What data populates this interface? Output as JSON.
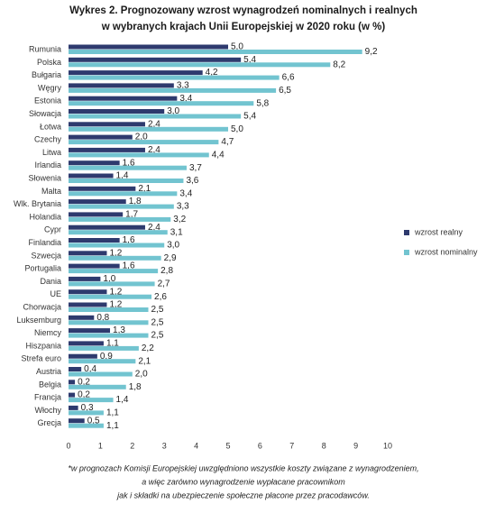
{
  "chart_data": {
    "type": "hbar",
    "title": [
      "Wykres 2. Prognozowany wzrost wynagrodzeń nominalnych i realnych",
      "w wybranych krajach Unii Europejskiej w 2020 roku (w %)"
    ],
    "categories": [
      "Rumunia",
      "Polska",
      "Bułgaria",
      "Węgry",
      "Estonia",
      "Słowacja",
      "Łotwa",
      "Czechy",
      "Litwa",
      "Irlandia",
      "Słowenia",
      "Malta",
      "Wlk. Brytania",
      "Holandia",
      "Cypr",
      "Finlandia",
      "Szwecja",
      "Portugalia",
      "Dania",
      "UE",
      "Chorwacja",
      "Luksemburg",
      "Niemcy",
      "Hiszpania",
      "Strefa euro",
      "Austria",
      "Belgia",
      "Francja",
      "Włochy",
      "Grecja"
    ],
    "series": [
      {
        "name": "wzrost realny",
        "color": "#2e3a6e",
        "values": [
          5.0,
          5.4,
          4.2,
          3.3,
          3.4,
          3.0,
          2.4,
          2.0,
          2.4,
          1.6,
          1.4,
          2.1,
          1.8,
          1.7,
          2.4,
          1.6,
          1.2,
          1.6,
          1.0,
          1.2,
          1.2,
          0.8,
          1.3,
          1.1,
          0.9,
          0.4,
          0.2,
          0.2,
          0.3,
          0.5
        ],
        "value_labels": [
          "5,0",
          "5,4",
          "4,2",
          "3,3",
          "3,4",
          "3,0",
          "2,4",
          "2,0",
          "2,4",
          "1,6",
          "1,4",
          "2,1",
          "1,8",
          "1,7",
          "2,4",
          "1,6",
          "1,2",
          "1,6",
          "1,0",
          "1,2",
          "1,2",
          "0,8",
          "1,3",
          "1,1",
          "0,9",
          "0,4",
          "0,2",
          "0,2",
          "0,3",
          "0,5"
        ]
      },
      {
        "name": "wzrost nominalny",
        "color": "#72c4d0",
        "values": [
          9.2,
          8.2,
          6.6,
          6.5,
          5.8,
          5.4,
          5.0,
          4.7,
          4.4,
          3.7,
          3.6,
          3.4,
          3.3,
          3.2,
          3.1,
          3.0,
          2.9,
          2.8,
          2.7,
          2.6,
          2.5,
          2.5,
          2.5,
          2.2,
          2.1,
          2.0,
          1.8,
          1.4,
          1.1,
          1.1
        ],
        "value_labels": [
          "9,2",
          "8,2",
          "6,6",
          "6,5",
          "5,8",
          "5,4",
          "5,0",
          "4,7",
          "4,4",
          "3,7",
          "3,6",
          "3,4",
          "3,3",
          "3,2",
          "3,1",
          "3,0",
          "2,9",
          "2,8",
          "2,7",
          "2,6",
          "2,5",
          "2,5",
          "2,5",
          "2,2",
          "2,1",
          "2,0",
          "1,8",
          "1,4",
          "1,1",
          "1,1"
        ]
      }
    ],
    "xlim": [
      0,
      10
    ],
    "xticks": [
      0,
      1,
      2,
      3,
      4,
      5,
      6,
      7,
      8,
      9,
      10
    ],
    "footnote": [
      "*w prognozach Komisji Europejskiej uwzględniono wszystkie koszty związane z wynagrodzeniem,",
      "a więc zarówno wynagrodzenie wypłacane pracownikom",
      "jak i składki na ubezpieczenie społeczne płacone przez pracodawców."
    ]
  }
}
